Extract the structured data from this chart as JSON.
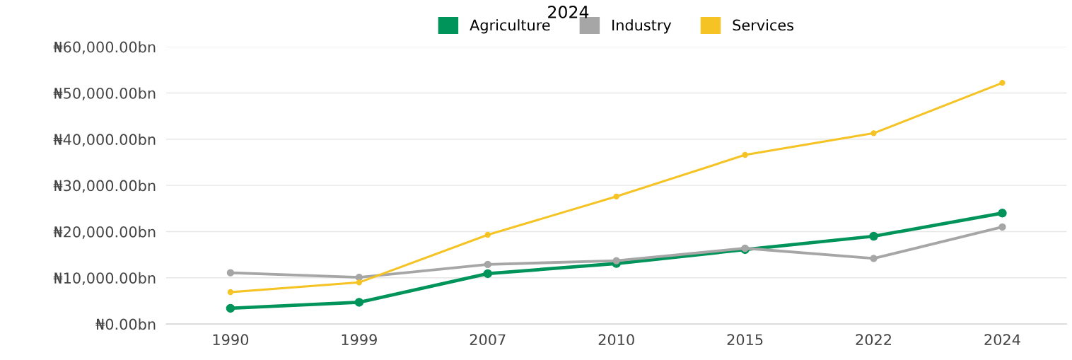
{
  "chart_data": {
    "type": "line",
    "title": "2024",
    "categories": [
      "1990",
      "1999",
      "2007",
      "2010",
      "2015",
      "2022",
      "2024"
    ],
    "series": [
      {
        "name": "Agriculture",
        "color": "#00945a",
        "values": [
          3400,
          4700,
          10900,
          13100,
          16100,
          19000,
          24000
        ]
      },
      {
        "name": "Industry",
        "color": "#a6a6a6",
        "values": [
          11100,
          10100,
          12900,
          13700,
          16400,
          14200,
          21000
        ]
      },
      {
        "name": "Services",
        "color": "#f5c324",
        "values": [
          6900,
          9000,
          19300,
          27600,
          36600,
          41300,
          52200
        ]
      }
    ],
    "ylim": [
      0,
      60000
    ],
    "yticks": [
      {
        "value": 0,
        "label": "₦0.00bn"
      },
      {
        "value": 10000,
        "label": "₦10,000.00bn"
      },
      {
        "value": 20000,
        "label": "₦20,000.00bn"
      },
      {
        "value": 30000,
        "label": "₦30,000.00bn"
      },
      {
        "value": 40000,
        "label": "₦40,000.00bn"
      },
      {
        "value": 50000,
        "label": "₦50,000.00bn"
      },
      {
        "value": 60000,
        "label": "₦60,000.00bn"
      }
    ],
    "grid": "y",
    "legend": "top",
    "marker": "circle",
    "line_style": "solid"
  }
}
